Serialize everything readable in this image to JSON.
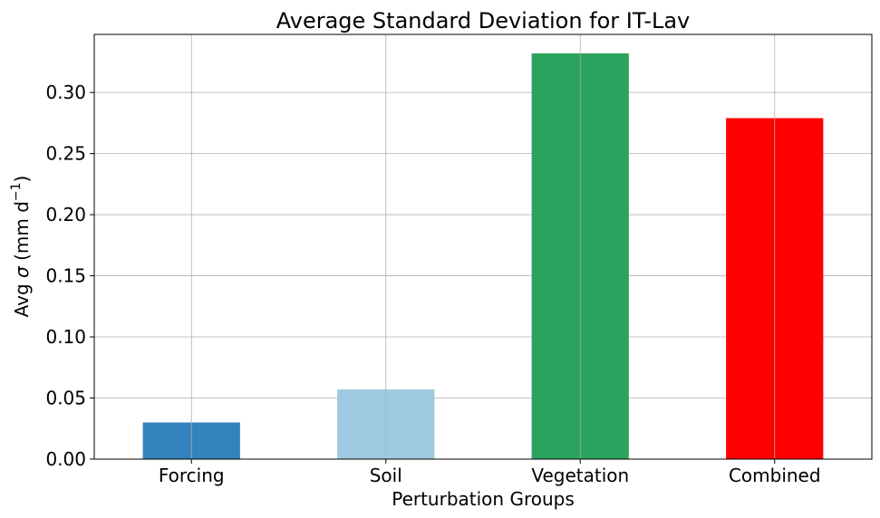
{
  "chart_data": {
    "type": "bar",
    "title": "Average Standard Deviation for IT-Lav",
    "xlabel": "Perturbation Groups",
    "ylabel": {
      "prefix": "Avg ",
      "sigma": "σ",
      "unit": " (mm d",
      "sup": "−1",
      "close": ")"
    },
    "categories": [
      "Forcing",
      "Soil",
      "Vegetation",
      "Combined"
    ],
    "values": [
      0.03,
      0.057,
      0.332,
      0.279
    ],
    "colors": [
      "#3182bd",
      "#9ecae1",
      "#2ca25f",
      "#ff0000"
    ],
    "ylim": [
      0,
      0.3475
    ],
    "yticks": [
      "0.00",
      "0.05",
      "0.10",
      "0.15",
      "0.20",
      "0.25",
      "0.30"
    ],
    "ytick_values": [
      0,
      0.05,
      0.1,
      0.15,
      0.2,
      0.25,
      0.3
    ],
    "grid": true,
    "legend": "none"
  }
}
